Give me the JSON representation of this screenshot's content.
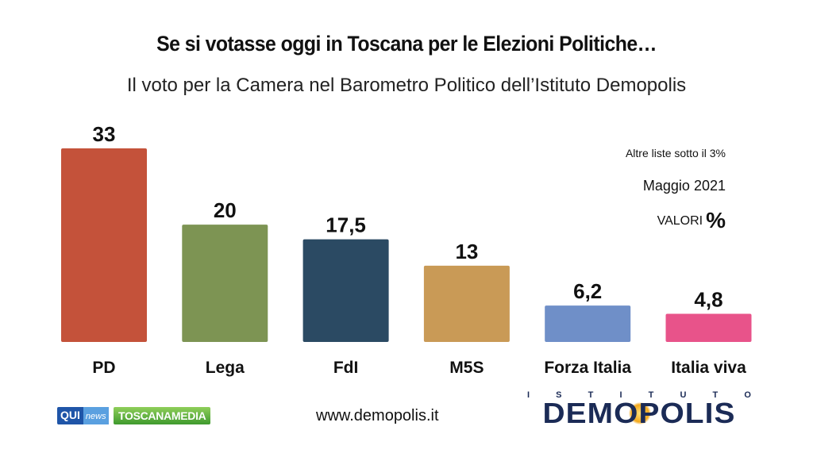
{
  "header": {
    "title": "Se si votasse oggi in Toscana per le Elezioni Politiche…",
    "subtitle": "Il voto per la Camera nel Barometro Politico dell’Istituto Demopolis"
  },
  "notes": {
    "other_lists": "Altre liste sotto il 3%",
    "date": "Maggio 2021",
    "values_label": "VALORI",
    "values_unit": "%"
  },
  "footer": {
    "url": "www.demopolis.it",
    "logo_qui": "QUI",
    "logo_qui_news": "news",
    "logo_toscanamedia": "TOSCANAMEDIA",
    "logo_istituto": "ISTITUTO",
    "logo_demopolis": "DEMOPOLIS"
  },
  "chart_data": {
    "type": "bar",
    "categories": [
      "PD",
      "Lega",
      "FdI",
      "M5S",
      "Forza Italia",
      "Italia viva"
    ],
    "values": [
      33,
      20,
      17.5,
      13,
      6.2,
      4.8
    ],
    "data_labels": [
      "33",
      "20",
      "17,5",
      "13",
      "6,2",
      "4,8"
    ],
    "colors": [
      "#c4523a",
      "#7d9453",
      "#2b4a63",
      "#c99a56",
      "#6f8fc8",
      "#e8538a"
    ],
    "ylim": [
      0,
      33
    ],
    "grid": false,
    "legend": "none"
  }
}
